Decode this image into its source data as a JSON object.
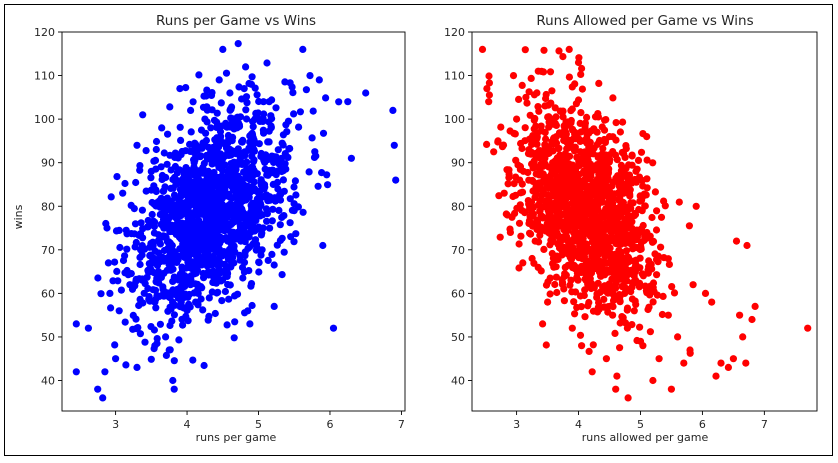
{
  "chart_data": [
    {
      "type": "scatter",
      "title": "Runs per Game vs Wins",
      "xlabel": "runs per game",
      "ylabel": "wins",
      "xlim": [
        2.25,
        7.05
      ],
      "ylim": [
        33,
        120
      ],
      "xticks": [
        3,
        4,
        5,
        6,
        7
      ],
      "yticks": [
        40,
        50,
        60,
        70,
        80,
        90,
        100,
        110,
        120
      ],
      "color": "#0000ff",
      "grid": false,
      "correlation": "positive",
      "x": [
        2.45,
        2.45,
        2.62,
        2.75,
        2.82,
        2.85,
        2.88,
        2.9,
        2.92,
        3.0,
        3.05,
        3.1,
        3.2,
        3.3,
        3.3,
        3.35,
        3.38,
        3.5,
        3.55,
        3.55,
        3.6,
        3.7,
        3.75,
        3.8,
        3.82,
        3.9,
        4.05,
        4.1,
        4.12,
        4.25,
        4.3,
        4.35,
        4.4,
        4.45,
        4.5,
        4.55,
        4.6,
        4.65,
        4.7,
        4.8,
        4.82,
        4.85,
        4.88,
        4.9,
        4.95,
        5.0,
        5.05,
        5.15,
        5.22,
        5.45,
        5.5,
        5.62,
        5.72,
        5.85,
        5.9,
        6.05,
        6.25,
        6.3,
        6.5,
        6.88,
        6.9,
        6.92
      ],
      "y": [
        42,
        53,
        52,
        38,
        36,
        42,
        75,
        67,
        60,
        45,
        56,
        83,
        62,
        43,
        94,
        70,
        101,
        88,
        48,
        58,
        65,
        50,
        47,
        40,
        38,
        107,
        102,
        90,
        58,
        100,
        84,
        82,
        70,
        109,
        116,
        64,
        106,
        74,
        98,
        107,
        112,
        56,
        53,
        108,
        100,
        100,
        70,
        104,
        57,
        73,
        79,
        116,
        110,
        109,
        71,
        52,
        104,
        91,
        106,
        102,
        94,
        86
      ]
    },
    {
      "type": "scatter",
      "title": "Runs Allowed per Game vs Wins",
      "xlabel": "runs allowed per game",
      "ylabel": "",
      "xlim": [
        2.28,
        7.85
      ],
      "ylim": [
        33,
        120
      ],
      "xticks": [
        3,
        4,
        5,
        6,
        7
      ],
      "yticks": [
        40,
        50,
        60,
        70,
        80,
        90,
        100,
        110,
        120
      ],
      "color": "#ff0000",
      "grid": false,
      "correlation": "negative",
      "x": [
        2.45,
        2.52,
        2.55,
        2.7,
        2.8,
        2.85,
        2.9,
        2.95,
        3.0,
        3.05,
        3.1,
        3.15,
        3.2,
        3.25,
        3.3,
        3.35,
        3.42,
        3.5,
        3.6,
        3.7,
        3.85,
        3.9,
        4.0,
        4.05,
        4.15,
        4.22,
        4.3,
        4.45,
        4.5,
        4.55,
        4.6,
        4.62,
        4.75,
        4.8,
        4.9,
        5.0,
        5.1,
        5.2,
        5.3,
        5.45,
        5.5,
        5.6,
        5.7,
        5.8,
        5.85,
        5.9,
        6.05,
        6.15,
        6.22,
        6.3,
        6.42,
        6.5,
        6.55,
        6.6,
        6.65,
        6.7,
        6.72,
        6.8,
        6.85,
        7.7
      ],
      "y": [
        116,
        107,
        104,
        95,
        83,
        78,
        74,
        110,
        100,
        86,
        67,
        105,
        93,
        68,
        72,
        111,
        53,
        58,
        66,
        91,
        116,
        52,
        113,
        48,
        62,
        42,
        97,
        45,
        96,
        55,
        38,
        41,
        77,
        36,
        56,
        49,
        96,
        40,
        45,
        55,
        38,
        50,
        44,
        47,
        62,
        80,
        60,
        58,
        41,
        44,
        43,
        45,
        72,
        55,
        50,
        44,
        71,
        54,
        57,
        52
      ]
    }
  ]
}
